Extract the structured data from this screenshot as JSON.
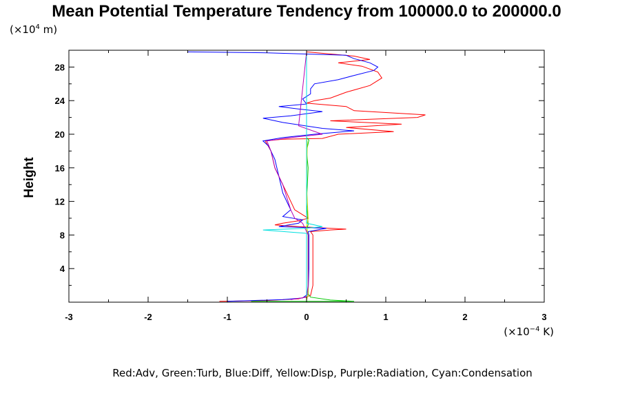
{
  "chart_data": {
    "type": "line",
    "title": "Mean Potential Temperature Tendency from 100000.0 to 200000.0",
    "ylabel": "Height",
    "y_unit": {
      "prefix": "(×10",
      "exp": "4",
      "suffix": " m)"
    },
    "x_unit": {
      "prefix": "(×10",
      "exp": "−4",
      "suffix": " K)"
    },
    "xlim": [
      -3,
      3
    ],
    "ylim": [
      0,
      30
    ],
    "x_ticks": [
      {
        "value": -3,
        "label": "-3"
      },
      {
        "value": -2,
        "label": "-2"
      },
      {
        "value": -1,
        "label": "-1"
      },
      {
        "value": 0,
        "label": "0"
      },
      {
        "value": 1,
        "label": "1"
      },
      {
        "value": 2,
        "label": "2"
      },
      {
        "value": 3,
        "label": "3"
      }
    ],
    "y_ticks": [
      {
        "value": 4,
        "label": "4"
      },
      {
        "value": 8,
        "label": "8"
      },
      {
        "value": 12,
        "label": "12"
      },
      {
        "value": 16,
        "label": "16"
      },
      {
        "value": 20,
        "label": "20"
      },
      {
        "value": 24,
        "label": "24"
      },
      {
        "value": 28,
        "label": "28"
      }
    ],
    "legend_text": "Red:Adv, Green:Turb, Blue:Diff, Yellow:Disp, Purple:Radiation, Cyan:Condensation",
    "grid": false,
    "series": [
      {
        "color": "#ff0000",
        "points": [
          [
            -1.1,
            0.1
          ],
          [
            -0.5,
            0.2
          ],
          [
            -0.1,
            0.4
          ],
          [
            0.05,
            0.8
          ],
          [
            0.08,
            2
          ],
          [
            0.08,
            6
          ],
          [
            0.08,
            8
          ],
          [
            0.05,
            8.4
          ],
          [
            0.3,
            8.6
          ],
          [
            0.5,
            8.7
          ],
          [
            -0.1,
            9.0
          ],
          [
            -0.4,
            9.2
          ],
          [
            -0.3,
            9.4
          ],
          [
            -0.1,
            9.7
          ],
          [
            0.02,
            10
          ],
          [
            -0.15,
            11
          ],
          [
            -0.3,
            14
          ],
          [
            -0.4,
            16
          ],
          [
            -0.45,
            18
          ],
          [
            -0.52,
            19.2
          ],
          [
            -0.3,
            19.4
          ],
          [
            0.2,
            19.5
          ],
          [
            0.4,
            20
          ],
          [
            1.1,
            20.3
          ],
          [
            0.5,
            20.8
          ],
          [
            1.2,
            21.2
          ],
          [
            0.3,
            21.6
          ],
          [
            1.4,
            22.0
          ],
          [
            1.5,
            22.3
          ],
          [
            0.6,
            22.8
          ],
          [
            0.5,
            23.3
          ],
          [
            0.0,
            23.7
          ],
          [
            0.1,
            24.0
          ],
          [
            0.3,
            24.3
          ],
          [
            0.5,
            25.0
          ],
          [
            0.8,
            25.8
          ],
          [
            0.95,
            26.7
          ],
          [
            0.9,
            27.4
          ],
          [
            0.7,
            28.1
          ],
          [
            0.4,
            28.5
          ],
          [
            0.8,
            28.9
          ],
          [
            0.6,
            29.3
          ],
          [
            0.0,
            29.8
          ]
        ]
      },
      {
        "color": "#00c800",
        "points": [
          [
            -0.7,
            0.1
          ],
          [
            0.6,
            0.1
          ],
          [
            0.3,
            0.25
          ],
          [
            0.05,
            0.6
          ],
          [
            0.02,
            1
          ],
          [
            0.02,
            8
          ],
          [
            0.0,
            8.8
          ],
          [
            0.02,
            9.2
          ],
          [
            0.0,
            12
          ],
          [
            0.02,
            16
          ],
          [
            0.0,
            18
          ],
          [
            0.03,
            19.3
          ],
          [
            0.0,
            19.6
          ],
          [
            0.0,
            29.8
          ]
        ]
      },
      {
        "color": "#0000ff",
        "points": [
          [
            -1.0,
            0.1
          ],
          [
            -0.3,
            0.3
          ],
          [
            -0.05,
            0.5
          ],
          [
            0.02,
            1
          ],
          [
            0.03,
            4
          ],
          [
            0.03,
            8
          ],
          [
            0.02,
            8.4
          ],
          [
            0.25,
            8.8
          ],
          [
            -0.35,
            9.0
          ],
          [
            -0.1,
            9.4
          ],
          [
            -0.05,
            9.8
          ],
          [
            -0.3,
            10.2
          ],
          [
            -0.2,
            11
          ],
          [
            -0.3,
            13
          ],
          [
            -0.35,
            15
          ],
          [
            -0.4,
            17
          ],
          [
            -0.48,
            18.6
          ],
          [
            -0.55,
            19.2
          ],
          [
            -0.3,
            19.6
          ],
          [
            0.1,
            20
          ],
          [
            0.6,
            20.4
          ],
          [
            0.2,
            20.7
          ],
          [
            -0.3,
            21.4
          ],
          [
            -0.55,
            21.9
          ],
          [
            -0.2,
            22.2
          ],
          [
            0.2,
            22.7
          ],
          [
            -0.1,
            23.0
          ],
          [
            -0.35,
            23.3
          ],
          [
            0.0,
            23.6
          ],
          [
            -0.05,
            24.2
          ],
          [
            0.05,
            24.8
          ],
          [
            0.05,
            25.4
          ],
          [
            0.1,
            26
          ],
          [
            0.4,
            26.5
          ],
          [
            0.6,
            27.0
          ],
          [
            0.85,
            27.6
          ],
          [
            0.9,
            28.0
          ],
          [
            0.8,
            28.5
          ],
          [
            0.6,
            29.0
          ],
          [
            0.5,
            29.4
          ],
          [
            -0.5,
            29.7
          ],
          [
            -1.5,
            29.8
          ]
        ]
      },
      {
        "color": "#d4d400",
        "points": [
          [
            0.0,
            0.2
          ],
          [
            0.02,
            1
          ],
          [
            0.02,
            8
          ],
          [
            0.0,
            9
          ],
          [
            0.02,
            10
          ],
          [
            0.0,
            14
          ],
          [
            0.01,
            19
          ],
          [
            0.0,
            19.5
          ],
          [
            0.0,
            29.8
          ]
        ]
      },
      {
        "color": "#b400b4",
        "points": [
          [
            -0.2,
            0.3
          ],
          [
            0.0,
            0.6
          ],
          [
            0.02,
            2
          ],
          [
            0.02,
            8
          ],
          [
            -0.05,
            9.4
          ],
          [
            -0.15,
            10
          ],
          [
            -0.2,
            11
          ],
          [
            -0.3,
            14
          ],
          [
            -0.4,
            16
          ],
          [
            -0.45,
            18
          ],
          [
            -0.5,
            19.2
          ],
          [
            -0.2,
            19.6
          ],
          [
            0.2,
            20
          ],
          [
            -0.1,
            21
          ],
          [
            0.0,
            29.8
          ]
        ]
      },
      {
        "color": "#00e0e0",
        "points": [
          [
            0.0,
            0.2
          ],
          [
            0.0,
            8.2
          ],
          [
            -0.55,
            8.6
          ],
          [
            0.0,
            8.8
          ],
          [
            0.2,
            9.0
          ],
          [
            0.0,
            9.4
          ],
          [
            0.0,
            29.8
          ]
        ]
      }
    ]
  }
}
